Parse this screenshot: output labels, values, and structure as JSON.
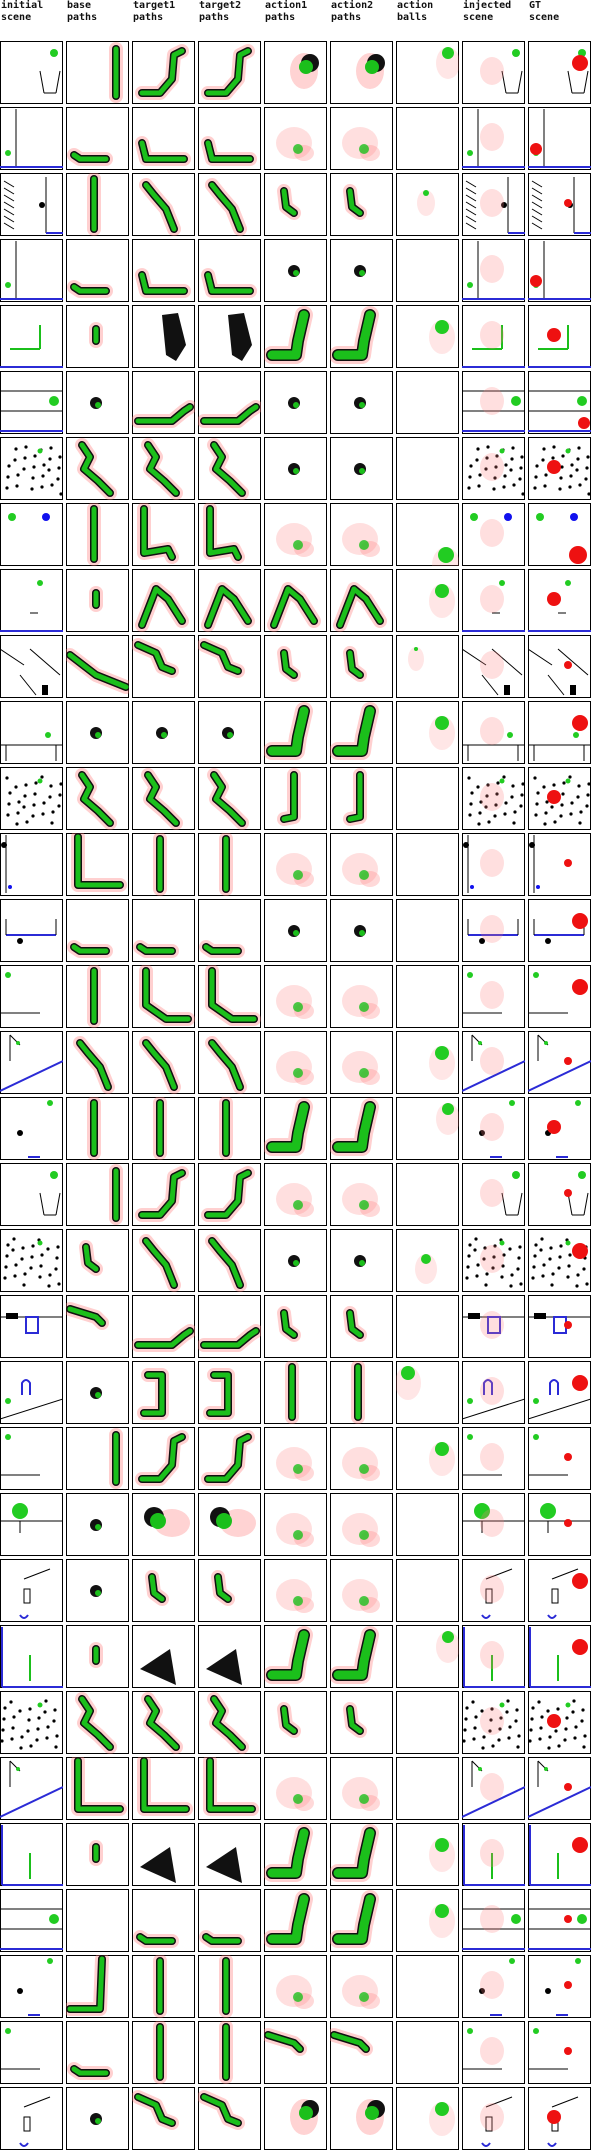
{
  "columns": [
    {
      "id": "initial-scene",
      "label": "initial\nscene"
    },
    {
      "id": "base-paths",
      "label": "base\npaths"
    },
    {
      "id": "target1-paths",
      "label": "target1\npaths"
    },
    {
      "id": "target2-paths",
      "label": "target2\npaths"
    },
    {
      "id": "action1-paths",
      "label": "action1\npaths"
    },
    {
      "id": "action2-paths",
      "label": "action2\npaths"
    },
    {
      "id": "action-balls",
      "label": "action\nballs"
    },
    {
      "id": "injected-scene",
      "label": "injected\nscene"
    },
    {
      "id": "gt-scene",
      "label": "GT\nscene"
    }
  ],
  "row_count": 32,
  "colors": {
    "path": "#1bbf1b",
    "shadow": "#111111",
    "ghost": "#ff8080",
    "wall": "#2b2bd6",
    "ball_green": "#22cc22",
    "ball_red": "#ee1111",
    "ball_blue": "#1111ee",
    "outline": "#000000"
  },
  "rows": [
    {
      "scene": "cup-top",
      "base": "vbar-right",
      "t1": "L-up-right",
      "t2": "L-up-right",
      "a1": "blob-right",
      "a2": "blob-right",
      "ball": "top-right",
      "gt": "red-top"
    },
    {
      "scene": "frame-left",
      "base": "small-L",
      "t1": "low-L",
      "t2": "low-L",
      "a1": "faint",
      "a2": "faint",
      "ball": "none",
      "gt": "red-left"
    },
    {
      "scene": "ramp-hatch",
      "base": "vbar",
      "t1": "diag-down",
      "t2": "diag-down",
      "a1": "small-v",
      "a2": "small-v",
      "ball": "small",
      "gt": "red-small"
    },
    {
      "scene": "frame-left",
      "base": "small-L",
      "t1": "low-L",
      "t2": "low-L",
      "a1": "dot",
      "a2": "dot",
      "ball": "none",
      "gt": "red-left"
    },
    {
      "scene": "L-green",
      "base": "tiny-v",
      "t1": "black-blob",
      "t2": "black-blob",
      "a1": "L-thick",
      "a2": "L-thick",
      "ball": "mid-right",
      "gt": "red-mid"
    },
    {
      "scene": "floor-line",
      "base": "dot",
      "t1": "long-h",
      "t2": "long-h",
      "a1": "dot",
      "a2": "dot",
      "ball": "none",
      "gt": "red-right"
    },
    {
      "scene": "dots-scatter",
      "base": "zigzag",
      "t1": "zigzag",
      "t2": "zigzag",
      "a1": "dot",
      "a2": "dot",
      "ball": "none",
      "gt": "red-mid"
    },
    {
      "scene": "three-balls",
      "base": "vbar",
      "t1": "hook",
      "t2": "hook",
      "a1": "faint",
      "a2": "faint",
      "ball": "bottom-right",
      "gt": "red-bottom"
    },
    {
      "scene": "dash",
      "base": "tiny-v",
      "t1": "arch",
      "t2": "arch",
      "a1": "arch",
      "a2": "arch",
      "ball": "mid-right",
      "gt": "red-mid"
    },
    {
      "scene": "ramps",
      "base": "diag-long",
      "t1": "diag-short",
      "t2": "diag-short",
      "a1": "small-v",
      "a2": "small-v",
      "ball": "tiny",
      "gt": "red-small"
    },
    {
      "scene": "bin-floor",
      "base": "dot",
      "t1": "dot",
      "t2": "dot",
      "a1": "L-thick",
      "a2": "L-thick",
      "ball": "mid-right",
      "gt": "red-top"
    },
    {
      "scene": "dots-scatter",
      "base": "zigzag",
      "t1": "zigzag",
      "t2": "zigzag",
      "a1": "vbar-green",
      "a2": "vbar-green",
      "ball": "none",
      "gt": "red-mid"
    },
    {
      "scene": "wall-left",
      "base": "L-corner",
      "t1": "vbar",
      "t2": "vbar",
      "a1": "faint",
      "a2": "faint",
      "ball": "none",
      "gt": "red-small"
    },
    {
      "scene": "bar-blue",
      "base": "small-L",
      "t1": "small-L",
      "t2": "small-L",
      "a1": "dot",
      "a2": "dot",
      "ball": "none",
      "gt": "red-top"
    },
    {
      "scene": "shelf",
      "base": "vbar",
      "t1": "L-down-right",
      "t2": "L-down-right",
      "a1": "faint",
      "a2": "faint",
      "ball": "none",
      "gt": "red-top"
    },
    {
      "scene": "ramp-blue",
      "base": "diag-down",
      "t1": "diag-down",
      "t2": "diag-down",
      "a1": "faint",
      "a2": "faint",
      "ball": "mid-right",
      "gt": "red-small"
    },
    {
      "scene": "black-dot",
      "base": "vbar",
      "t1": "vbar",
      "t2": "vbar",
      "a1": "L-thick",
      "a2": "L-thick",
      "ball": "top-right",
      "gt": "red-mid"
    },
    {
      "scene": "cup-top",
      "base": "vbar-right",
      "t1": "L-up-right",
      "t2": "L-up-right",
      "a1": "faint",
      "a2": "faint",
      "ball": "none",
      "gt": "red-small"
    },
    {
      "scene": "dots-scatter",
      "base": "small-v",
      "t1": "diag-down",
      "t2": "diag-down",
      "a1": "dot",
      "a2": "dot",
      "ball": "dot",
      "gt": "red-top"
    },
    {
      "scene": "pipes",
      "base": "small-h",
      "t1": "long-h",
      "t2": "long-h",
      "a1": "small-v",
      "a2": "small-v",
      "ball": "none",
      "gt": "red-small"
    },
    {
      "scene": "arch-slope",
      "base": "dot",
      "t1": "black-hook",
      "t2": "black-hook",
      "a1": "vbar",
      "a2": "vbar",
      "ball": "top-left",
      "gt": "red-top"
    },
    {
      "scene": "shelf",
      "base": "vbar-right",
      "t1": "L-up-right",
      "t2": "L-up-right",
      "a1": "faint",
      "a2": "faint",
      "ball": "mid-right",
      "gt": "red-small"
    },
    {
      "scene": "tree",
      "base": "dot",
      "t1": "blob-left",
      "t2": "blob-left",
      "a1": "faint",
      "a2": "faint",
      "ball": "none",
      "gt": "red-small"
    },
    {
      "scene": "pole-blue",
      "base": "dot",
      "t1": "small-v",
      "t2": "small-v",
      "a1": "faint",
      "a2": "faint",
      "ball": "none",
      "gt": "red-top"
    },
    {
      "scene": "frame-blue",
      "base": "tiny-v",
      "t1": "black-fan",
      "t2": "black-fan",
      "a1": "L-thick",
      "a2": "L-thick",
      "ball": "top-right",
      "gt": "red-top"
    },
    {
      "scene": "dots-scatter",
      "base": "zigzag",
      "t1": "zigzag",
      "t2": "zigzag",
      "a1": "small-v",
      "a2": "small-v",
      "ball": "none",
      "gt": "red-mid"
    },
    {
      "scene": "ramp-blue",
      "base": "L-corner",
      "t1": "L-corner",
      "t2": "L-corner",
      "a1": "faint",
      "a2": "faint",
      "ball": "none",
      "gt": "red-small"
    },
    {
      "scene": "frame-blue",
      "base": "tiny-v",
      "t1": "black-fan",
      "t2": "black-fan",
      "a1": "L-thick",
      "a2": "L-thick",
      "ball": "mid-right",
      "gt": "red-top"
    },
    {
      "scene": "floor-line",
      "base": "none",
      "t1": "small-L",
      "t2": "small-L",
      "a1": "L-thick",
      "a2": "L-thick",
      "ball": "mid-right",
      "gt": "red-small"
    },
    {
      "scene": "black-dot",
      "base": "L-big",
      "t1": "vbar",
      "t2": "vbar",
      "a1": "faint",
      "a2": "faint",
      "ball": "none",
      "gt": "red-small"
    },
    {
      "scene": "shelf",
      "base": "small-L",
      "t1": "vbar",
      "t2": "vbar",
      "a1": "small-h",
      "a2": "small-h",
      "ball": "none",
      "gt": "red-small"
    },
    {
      "scene": "pole-blue",
      "base": "dot",
      "t1": "diag-short",
      "t2": "diag-short",
      "a1": "blob-right",
      "a2": "blob-right",
      "ball": "mid-right",
      "gt": "red-mid"
    }
  ]
}
